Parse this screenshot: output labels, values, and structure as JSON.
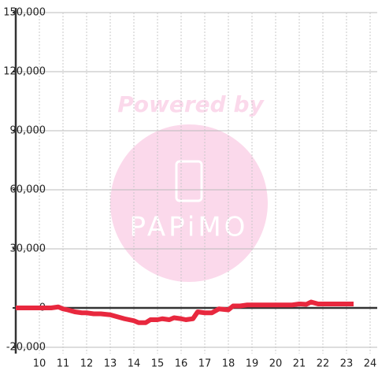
{
  "chart_data": {
    "type": "line",
    "x": [
      9,
      10.5,
      10.8,
      11,
      11.2,
      11.5,
      11.8,
      12,
      12.3,
      12.6,
      13,
      13.3,
      13.6,
      14,
      14.2,
      14.5,
      14.7,
      15,
      15.2,
      15.5,
      15.7,
      16,
      16.2,
      16.5,
      16.7,
      17,
      17.3,
      17.6,
      18,
      18.2,
      18.5,
      18.8,
      19,
      20,
      20.7,
      21,
      21.3,
      21.5,
      21.8,
      22,
      23,
      23.3
    ],
    "series": [
      {
        "color": "#e8283e",
        "values": [
          0,
          0,
          500,
          -500,
          -1000,
          -2000,
          -2500,
          -2500,
          -3000,
          -3000,
          -3500,
          -4500,
          -5500,
          -6500,
          -7500,
          -7500,
          -6000,
          -6000,
          -5500,
          -6000,
          -5000,
          -5500,
          -6000,
          -5500,
          -2000,
          -2500,
          -2500,
          -500,
          -1000,
          1000,
          1000,
          1500,
          1500,
          1500,
          1500,
          2000,
          1800,
          3000,
          2000,
          2000,
          2000,
          2000
        ]
      }
    ],
    "xlim": [
      9,
      24.3
    ],
    "xticks": [
      10,
      11,
      12,
      13,
      14,
      15,
      16,
      17,
      18,
      19,
      20,
      21,
      22,
      23,
      24
    ],
    "ylim": [
      -20000,
      150000
    ],
    "yticks": [
      {
        "value": -20000,
        "label": "-20,000"
      },
      0,
      {
        "value": 30000,
        "label": "30,000"
      },
      {
        "value": 60000,
        "label": "60,000"
      },
      {
        "value": 90000,
        "label": "90,000"
      },
      {
        "value": 120000,
        "label": "120,000"
      },
      {
        "value": 150000,
        "label": "150,000"
      }
    ],
    "grid": true
  },
  "watermark": {
    "line1": "Powered by",
    "line2": "PAPiMO"
  }
}
